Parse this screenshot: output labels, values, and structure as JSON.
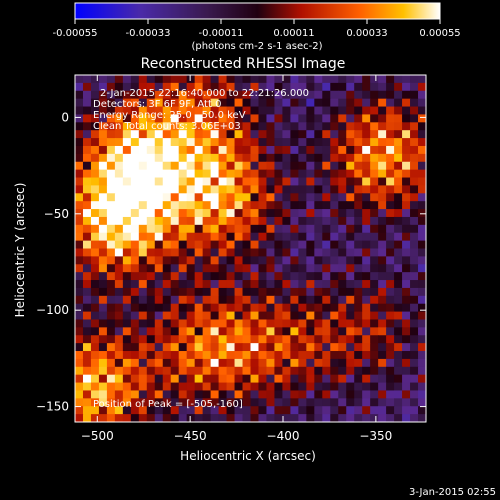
{
  "chart_data": {
    "type": "heatmap",
    "title": "Reconstructed RHESSI Image",
    "xlabel": "Heliocentric X (arcsec)",
    "ylabel": "Heliocentric Y (arcsec)",
    "xlim": [
      -512,
      -323
    ],
    "ylim": [
      -158,
      22
    ],
    "x_ticks": [
      -500,
      -450,
      -400,
      -350
    ],
    "y_ticks": [
      0,
      -50,
      -100,
      -150
    ],
    "colorbar": {
      "min": -0.00055,
      "max": 0.00055,
      "ticks": [
        "-0.00055",
        "-0.00033",
        "-0.00011",
        "0.00011",
        "0.00033",
        "0.00055"
      ],
      "unit_label": "(photons cm-2 s-1 asec-2)"
    },
    "annotations": [
      "2-Jan-2015 22:16:40.000 to 22:21:26.000",
      "Detectors: 3F 6F 9F, Att 0",
      "Energy Range: 25.0 - 50.0 keV",
      "Clean    Total counts: 3.06E+03"
    ],
    "peak_label": "Position of Peak = [-505,-160]",
    "peak": [
      -505,
      -160
    ],
    "sources": [
      {
        "x": -490,
        "y": -55,
        "amplitude": 1.0
      },
      {
        "x": -478,
        "y": -20,
        "amplitude": 0.9
      },
      {
        "x": -502,
        "y": -140,
        "amplitude": 0.95
      },
      {
        "x": -432,
        "y": -42,
        "amplitude": 0.85
      },
      {
        "x": -442,
        "y": 5,
        "amplitude": 0.55
      },
      {
        "x": -346,
        "y": -20,
        "amplitude": 0.9
      },
      {
        "x": -440,
        "y": -120,
        "amplitude": 0.75
      },
      {
        "x": -398,
        "y": -118,
        "amplitude": 0.5
      },
      {
        "x": -352,
        "y": -110,
        "amplitude": 0.45
      }
    ]
  },
  "footer": {
    "timestamp": "3-Jan-2015 02:55"
  },
  "colors": {
    "background": "#000000",
    "foreground": "#ffffff"
  }
}
